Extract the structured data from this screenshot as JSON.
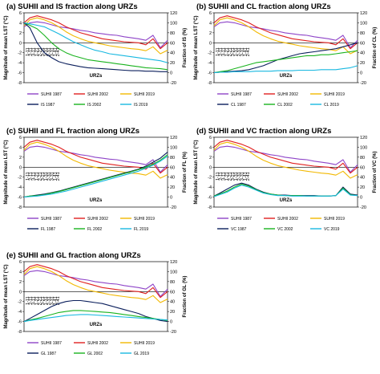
{
  "figure": {
    "panels": [
      {
        "label": "(a)",
        "title": "SUHII and IS fraction along URZs",
        "y2_label": "Fraction of IS (%)",
        "legend": [
          "SUHII 1987",
          "SUHII 2002",
          "SUHII 2019",
          "IS 1987",
          "IS 2002",
          "IS 2019"
        ]
      },
      {
        "label": "(b)",
        "title": "SUHII and CL fraction along URZs",
        "y2_label": "Fraction of CL (%)",
        "legend": [
          "SUHII 1987",
          "SUHII 2002",
          "SUHII 2019",
          "CL 1987",
          "CL 2002",
          "CL 2019"
        ]
      },
      {
        "label": "(c)",
        "title": "SUHII and FL fraction along URZs",
        "y2_label": "Fraction of FL (%)",
        "legend": [
          "SUHII 1987",
          "SUHII 2002",
          "SUHII 2019",
          "FL 1987",
          "FL 2002",
          "FL 2019"
        ]
      },
      {
        "label": "(d)",
        "title": "SUHII and VC fraction along URZs",
        "y2_label": "Fraction of VC (%)",
        "legend": [
          "SUHII 1987",
          "SUHII 2002",
          "SUHII 2019",
          "VC 1987",
          "VC 2002",
          "VC 2019"
        ]
      },
      {
        "label": "(e)",
        "title": "SUHII and GL fraction along URZs",
        "y2_label": "Fraction of GL (%)",
        "legend": [
          "SUHII 1987",
          "SUHII 2002",
          "SUHII 2019",
          "GL 1987",
          "GL 2002",
          "GL 2019"
        ]
      }
    ],
    "y_label": "Magnitude of mean LST (°C)",
    "x_label": "URZs",
    "y_ticks": [
      "-8",
      "-6",
      "-4",
      "-2",
      "0",
      "2",
      "4",
      "6"
    ],
    "y2_ticks": [
      "-20",
      "0",
      "20",
      "40",
      "60",
      "80",
      "100",
      "120"
    ],
    "zone_labels": [
      "1-11",
      "2-11",
      "3-11",
      "1-21",
      "2-21",
      "3-21",
      "1-31",
      "2-31",
      "3-31",
      "1-41",
      "2-41",
      "3-41",
      "1-51",
      "2-51",
      "3-51",
      "1-61",
      "2-61",
      "3-61",
      "1-71",
      "2-71",
      "3-71"
    ],
    "colors": {
      "suhii_1987": "#8e44c8",
      "suhii_2002": "#e02020",
      "suhii_2019": "#f2b800",
      "lc_1987": "#0b1f5c",
      "lc_2002": "#19b31e",
      "lc_2019": "#18b8e0"
    }
  },
  "chart_data": [
    {
      "type": "line",
      "title": "SUHII and IS fraction along URZs",
      "xlabel": "URZs",
      "ylabel": "Magnitude of mean LST (°C)",
      "y2label": "Fraction of IS (%)",
      "ylim": [
        -8,
        6
      ],
      "y2lim": [
        -20,
        120
      ],
      "legend": "bottom",
      "x": [
        1,
        5,
        10,
        15,
        20,
        25,
        30,
        35,
        40,
        45,
        50,
        55,
        60,
        65,
        70,
        75,
        80,
        85,
        90,
        95,
        100
      ],
      "series": [
        {
          "name": "SUHII 1987",
          "axis": "left",
          "values": [
            3.2,
            4.0,
            4.2,
            4.0,
            3.6,
            3.2,
            3.0,
            2.8,
            2.5,
            2.3,
            2.0,
            1.8,
            1.6,
            1.5,
            1.2,
            1.0,
            0.8,
            0.5,
            1.5,
            -1.0,
            0.5
          ]
        },
        {
          "name": "SUHII 2002",
          "axis": "left",
          "values": [
            4.0,
            5.0,
            5.4,
            5.0,
            4.6,
            4.0,
            3.2,
            2.6,
            2.0,
            1.6,
            1.2,
            0.8,
            0.6,
            0.4,
            0.2,
            0.1,
            0.0,
            -0.4,
            0.8,
            -1.2,
            0.0
          ]
        },
        {
          "name": "SUHII 2019",
          "axis": "left",
          "values": [
            3.4,
            4.6,
            5.0,
            4.6,
            4.0,
            3.2,
            2.2,
            1.4,
            0.8,
            0.3,
            0.0,
            -0.3,
            -0.6,
            -0.8,
            -1.0,
            -1.2,
            -1.3,
            -1.6,
            -0.8,
            -2.2,
            -1.5
          ]
        },
        {
          "name": "IS 1987",
          "axis": "right",
          "values": [
            100,
            90,
            60,
            40,
            30,
            22,
            18,
            15,
            12,
            10,
            9,
            8,
            7,
            6,
            5,
            4,
            4,
            3,
            3,
            2,
            2
          ]
        },
        {
          "name": "IS 2002",
          "axis": "right",
          "values": [
            100,
            95,
            88,
            75,
            60,
            48,
            40,
            34,
            30,
            26,
            24,
            22,
            20,
            18,
            16,
            14,
            12,
            10,
            9,
            8,
            6
          ]
        },
        {
          "name": "IS 2019",
          "axis": "right",
          "values": [
            100,
            98,
            95,
            92,
            85,
            78,
            70,
            62,
            56,
            50,
            45,
            42,
            38,
            36,
            34,
            32,
            30,
            28,
            26,
            24,
            20
          ]
        }
      ]
    },
    {
      "type": "line",
      "title": "SUHII and CL fraction along URZs",
      "xlabel": "URZs",
      "ylabel": "Magnitude of mean LST (°C)",
      "y2label": "Fraction of CL (%)",
      "ylim": [
        -8,
        6
      ],
      "y2lim": [
        -20,
        120
      ],
      "legend": "bottom",
      "x": [
        1,
        5,
        10,
        15,
        20,
        25,
        30,
        35,
        40,
        45,
        50,
        55,
        60,
        65,
        70,
        75,
        80,
        85,
        90,
        95,
        100
      ],
      "series": [
        {
          "name": "SUHII 1987",
          "axis": "left",
          "values": [
            3.2,
            4.0,
            4.2,
            4.0,
            3.6,
            3.2,
            3.0,
            2.8,
            2.5,
            2.3,
            2.0,
            1.8,
            1.6,
            1.5,
            1.2,
            1.0,
            0.8,
            0.5,
            1.5,
            -1.0,
            0.5
          ]
        },
        {
          "name": "SUHII 2002",
          "axis": "left",
          "values": [
            4.0,
            5.0,
            5.4,
            5.0,
            4.6,
            4.0,
            3.2,
            2.6,
            2.0,
            1.6,
            1.2,
            0.8,
            0.6,
            0.4,
            0.2,
            0.1,
            0.0,
            -0.4,
            0.8,
            -1.2,
            0.0
          ]
        },
        {
          "name": "SUHII 2019",
          "axis": "left",
          "values": [
            3.4,
            4.6,
            5.0,
            4.6,
            4.0,
            3.2,
            2.2,
            1.4,
            0.8,
            0.3,
            0.0,
            -0.3,
            -0.6,
            -0.8,
            -1.0,
            -1.2,
            -1.3,
            -1.6,
            -0.8,
            -2.2,
            -1.5
          ]
        },
        {
          "name": "CL 1987",
          "axis": "right",
          "values": [
            0,
            1,
            2,
            3,
            4,
            6,
            10,
            14,
            20,
            26,
            30,
            34,
            38,
            40,
            42,
            44,
            46,
            48,
            52,
            56,
            60
          ]
        },
        {
          "name": "CL 2002",
          "axis": "right",
          "values": [
            0,
            2,
            4,
            8,
            12,
            16,
            20,
            22,
            24,
            26,
            28,
            30,
            32,
            34,
            34,
            36,
            36,
            38,
            40,
            42,
            44
          ]
        },
        {
          "name": "CL 2019",
          "axis": "right",
          "values": [
            0,
            1,
            1,
            2,
            2,
            2,
            3,
            3,
            3,
            4,
            4,
            4,
            5,
            5,
            5,
            6,
            6,
            6,
            8,
            10,
            14
          ]
        }
      ]
    },
    {
      "type": "line",
      "title": "SUHII and FL fraction along URZs",
      "xlabel": "URZs",
      "ylabel": "Magnitude of mean LST (°C)",
      "y2label": "Fraction of FL (%)",
      "ylim": [
        -8,
        6
      ],
      "y2lim": [
        -20,
        120
      ],
      "legend": "bottom",
      "x": [
        1,
        5,
        10,
        15,
        20,
        25,
        30,
        35,
        40,
        45,
        50,
        55,
        60,
        65,
        70,
        75,
        80,
        85,
        90,
        95,
        100
      ],
      "series": [
        {
          "name": "SUHII 1987",
          "axis": "left",
          "values": [
            3.2,
            4.0,
            4.2,
            4.0,
            3.6,
            3.2,
            3.0,
            2.8,
            2.5,
            2.3,
            2.0,
            1.8,
            1.6,
            1.5,
            1.2,
            1.0,
            0.8,
            0.5,
            1.5,
            -1.0,
            0.5
          ]
        },
        {
          "name": "SUHII 2002",
          "axis": "left",
          "values": [
            4.0,
            5.0,
            5.4,
            5.0,
            4.6,
            4.0,
            3.2,
            2.6,
            2.0,
            1.6,
            1.2,
            0.8,
            0.6,
            0.4,
            0.2,
            0.1,
            0.0,
            -0.4,
            0.8,
            -1.2,
            0.0
          ]
        },
        {
          "name": "SUHII 2019",
          "axis": "left",
          "values": [
            3.4,
            4.6,
            5.0,
            4.6,
            4.0,
            3.2,
            2.2,
            1.4,
            0.8,
            0.3,
            0.0,
            -0.3,
            -0.6,
            -0.8,
            -1.0,
            -1.2,
            -1.3,
            -1.6,
            -0.8,
            -2.2,
            -1.5
          ]
        },
        {
          "name": "FL 1987",
          "axis": "right",
          "values": [
            0,
            2,
            4,
            6,
            9,
            12,
            16,
            20,
            24,
            28,
            32,
            36,
            40,
            44,
            48,
            52,
            56,
            62,
            70,
            78,
            90
          ]
        },
        {
          "name": "FL 2002",
          "axis": "right",
          "values": [
            0,
            2,
            3,
            5,
            8,
            11,
            15,
            19,
            23,
            27,
            31,
            35,
            39,
            43,
            47,
            51,
            55,
            60,
            66,
            74,
            85
          ]
        },
        {
          "name": "FL 2019",
          "axis": "right",
          "values": [
            0,
            1,
            2,
            4,
            6,
            9,
            12,
            16,
            20,
            24,
            28,
            32,
            36,
            40,
            44,
            48,
            52,
            58,
            64,
            72,
            82
          ]
        }
      ]
    },
    {
      "type": "line",
      "title": "SUHII and VC fraction along URZs",
      "xlabel": "URZs",
      "ylabel": "Magnitude of mean LST (°C)",
      "y2label": "Fraction of VC (%)",
      "ylim": [
        -8,
        6
      ],
      "y2lim": [
        -20,
        120
      ],
      "legend": "bottom",
      "x": [
        1,
        5,
        10,
        15,
        20,
        25,
        30,
        35,
        40,
        45,
        50,
        55,
        60,
        65,
        70,
        75,
        80,
        85,
        90,
        95,
        100
      ],
      "series": [
        {
          "name": "SUHII 1987",
          "axis": "left",
          "values": [
            3.2,
            4.0,
            4.2,
            4.0,
            3.6,
            3.2,
            3.0,
            2.8,
            2.5,
            2.3,
            2.0,
            1.8,
            1.6,
            1.5,
            1.2,
            1.0,
            0.8,
            0.5,
            1.5,
            -1.0,
            0.5
          ]
        },
        {
          "name": "SUHII 2002",
          "axis": "left",
          "values": [
            4.0,
            5.0,
            5.4,
            5.0,
            4.6,
            4.0,
            3.2,
            2.6,
            2.0,
            1.6,
            1.2,
            0.8,
            0.6,
            0.4,
            0.2,
            0.1,
            0.0,
            -0.4,
            0.8,
            -1.2,
            0.0
          ]
        },
        {
          "name": "SUHII 2019",
          "axis": "left",
          "values": [
            3.4,
            4.6,
            5.0,
            4.6,
            4.0,
            3.2,
            2.2,
            1.4,
            0.8,
            0.3,
            0.0,
            -0.3,
            -0.6,
            -0.8,
            -1.0,
            -1.2,
            -1.3,
            -1.6,
            -0.8,
            -2.2,
            -1.5
          ]
        },
        {
          "name": "VC 1987",
          "axis": "right",
          "values": [
            2,
            8,
            16,
            24,
            28,
            24,
            16,
            10,
            6,
            4,
            4,
            3,
            3,
            3,
            3,
            2,
            2,
            3,
            20,
            6,
            4
          ]
        },
        {
          "name": "VC 2002",
          "axis": "right",
          "values": [
            2,
            6,
            12,
            20,
            26,
            22,
            15,
            9,
            6,
            4,
            3,
            3,
            3,
            2,
            2,
            2,
            2,
            3,
            18,
            5,
            3
          ]
        },
        {
          "name": "VC 2019",
          "axis": "right",
          "values": [
            1,
            5,
            10,
            18,
            24,
            20,
            14,
            8,
            5,
            3,
            3,
            2,
            2,
            2,
            2,
            2,
            2,
            3,
            16,
            4,
            3
          ]
        }
      ]
    },
    {
      "type": "line",
      "title": "SUHII and GL fraction along URZs",
      "xlabel": "URZs",
      "ylabel": "Magnitude of mean LST (°C)",
      "y2label": "Fraction of GL (%)",
      "ylim": [
        -8,
        6
      ],
      "y2lim": [
        -20,
        120
      ],
      "legend": "bottom",
      "x": [
        1,
        5,
        10,
        15,
        20,
        25,
        30,
        35,
        40,
        45,
        50,
        55,
        60,
        65,
        70,
        75,
        80,
        85,
        90,
        95,
        100
      ],
      "series": [
        {
          "name": "SUHII 1987",
          "axis": "left",
          "values": [
            3.2,
            4.0,
            4.2,
            4.0,
            3.6,
            3.2,
            3.0,
            2.8,
            2.5,
            2.3,
            2.0,
            1.8,
            1.6,
            1.5,
            1.2,
            1.0,
            0.8,
            0.5,
            1.5,
            -1.0,
            0.5
          ]
        },
        {
          "name": "SUHII 2002",
          "axis": "left",
          "values": [
            4.0,
            5.0,
            5.4,
            5.0,
            4.6,
            4.0,
            3.2,
            2.6,
            2.0,
            1.6,
            1.2,
            0.8,
            0.6,
            0.4,
            0.2,
            0.1,
            0.0,
            -0.4,
            0.8,
            -1.2,
            0.0
          ]
        },
        {
          "name": "SUHII 2019",
          "axis": "left",
          "values": [
            3.4,
            4.6,
            5.0,
            4.6,
            4.0,
            3.2,
            2.2,
            1.4,
            0.8,
            0.3,
            0.0,
            -0.3,
            -0.6,
            -0.8,
            -1.0,
            -1.2,
            -1.3,
            -1.6,
            -0.8,
            -2.2,
            -1.5
          ]
        },
        {
          "name": "GL 1987",
          "axis": "right",
          "values": [
            0,
            6,
            14,
            22,
            30,
            36,
            40,
            42,
            42,
            40,
            38,
            36,
            32,
            28,
            24,
            20,
            16,
            10,
            6,
            2,
            0
          ]
        },
        {
          "name": "GL 2002",
          "axis": "right",
          "values": [
            0,
            3,
            6,
            10,
            14,
            18,
            20,
            22,
            22,
            21,
            20,
            19,
            18,
            16,
            14,
            12,
            10,
            8,
            6,
            4,
            2
          ]
        },
        {
          "name": "GL 2019",
          "axis": "right",
          "values": [
            0,
            2,
            4,
            6,
            8,
            10,
            12,
            13,
            14,
            14,
            13,
            12,
            11,
            10,
            9,
            8,
            7,
            6,
            5,
            4,
            3
          ]
        }
      ]
    }
  ]
}
